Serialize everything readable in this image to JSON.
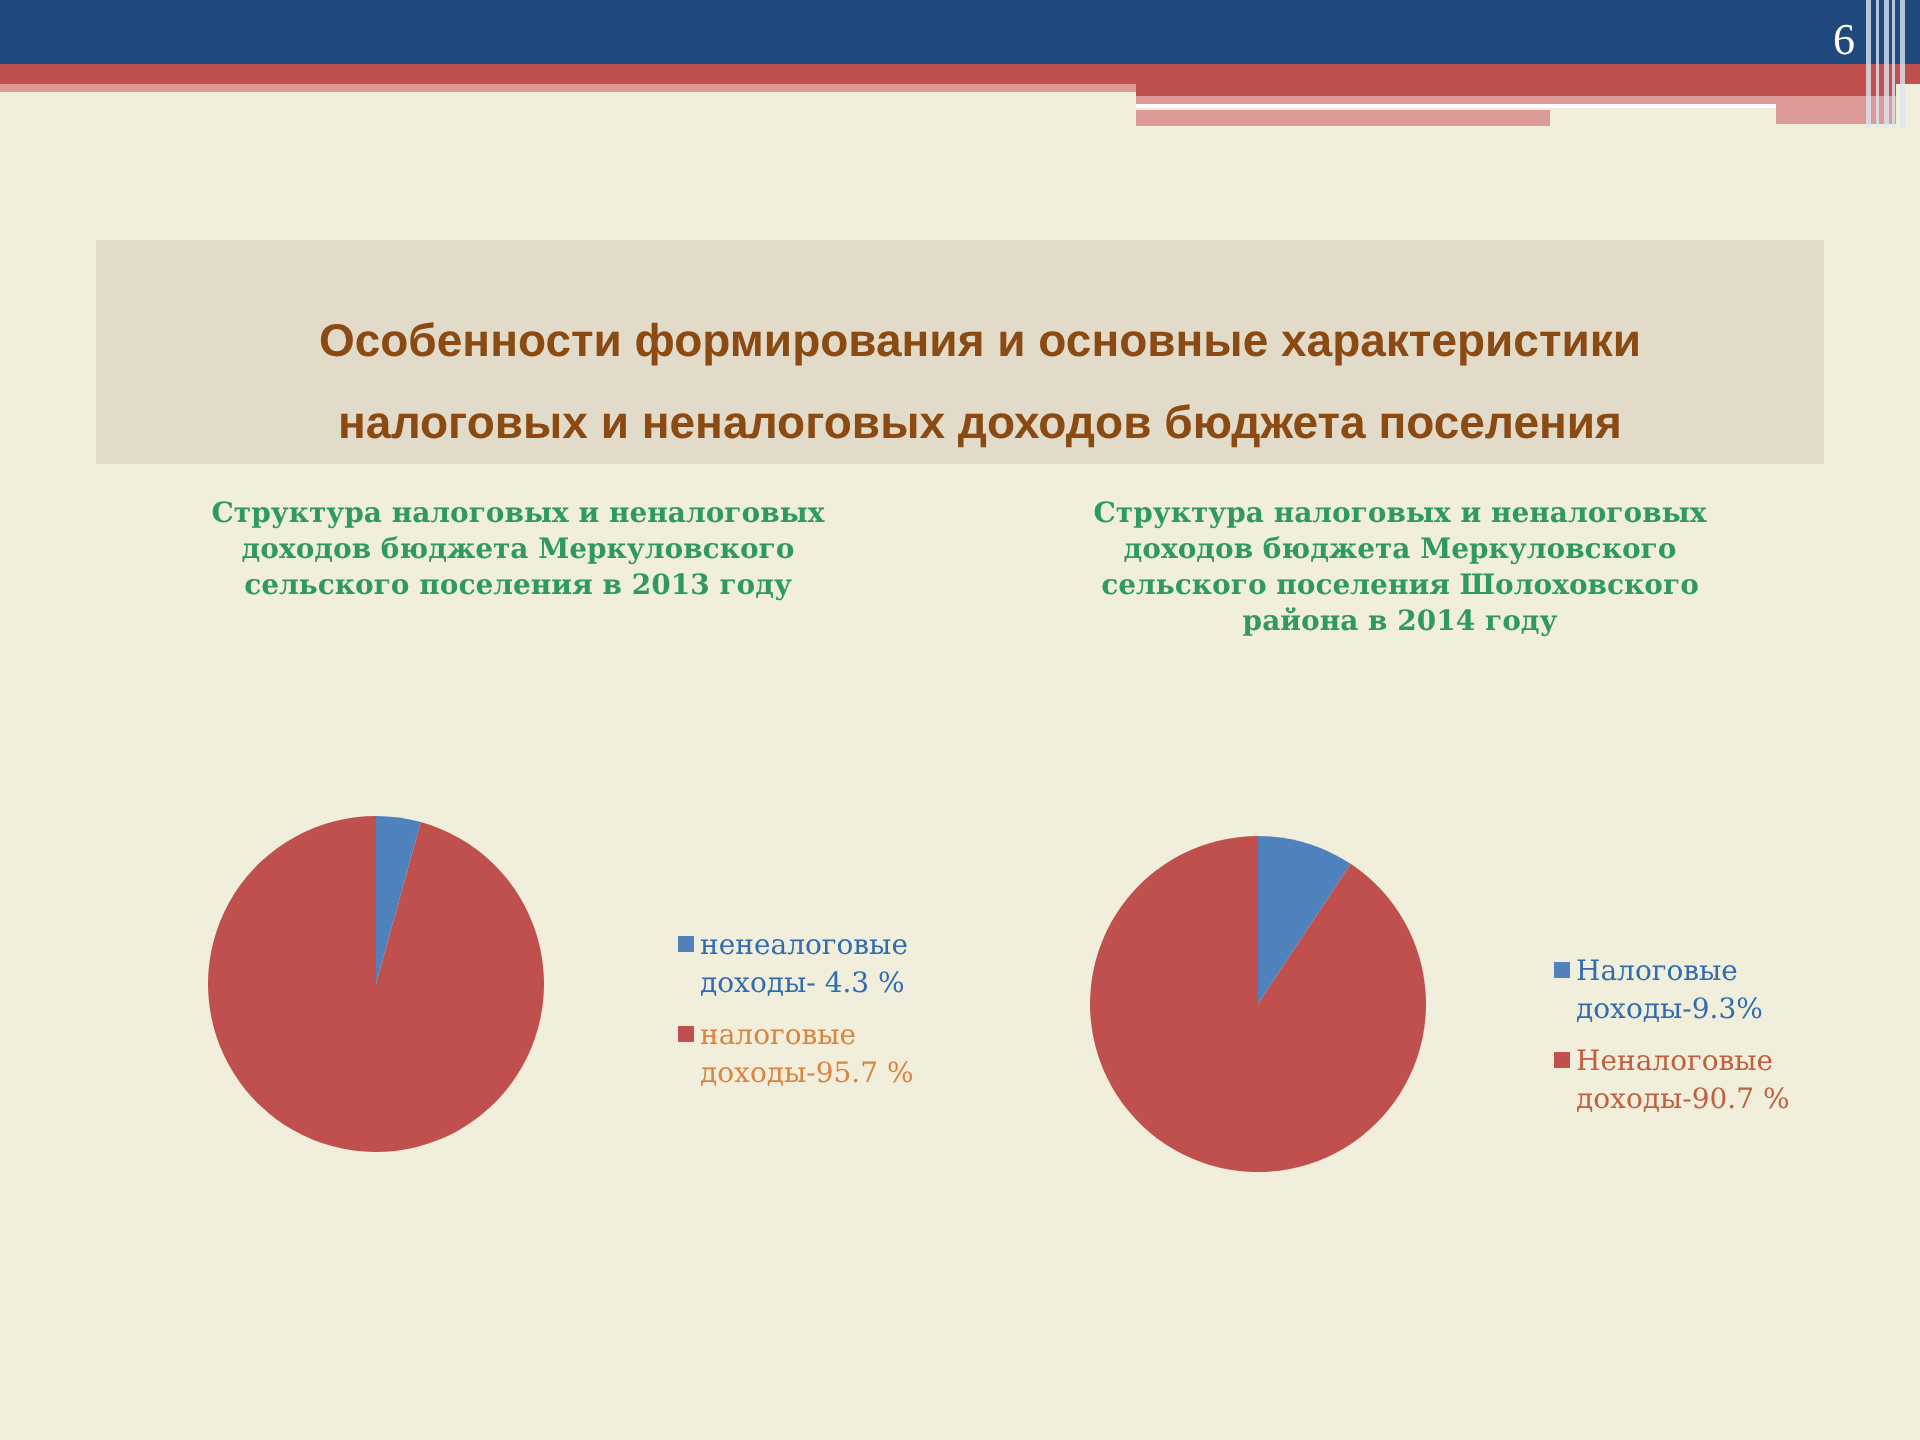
{
  "chart_data": [
    {
      "type": "pie",
      "title": "Структура налоговых и неналоговых доходов бюджета Меркуловского сельского поселения в 2013 году",
      "categories": [
        "ненеалоговые доходы- 4.3 %",
        "налоговые доходы-95.7 %"
      ],
      "values": [
        4.3,
        95.7
      ],
      "colors": [
        "#4f81bd",
        "#c0504d"
      ],
      "legend": "right",
      "annotations": [
        "Особенности формирования и основные характеристики налоговых и неналоговых доходов бюджета поселения",
        "6"
      ]
    },
    {
      "type": "pie",
      "title": "Структура налоговых и неналоговых доходов бюджета Меркуловского сельского поселения Шолоховского района в 2014 году",
      "categories": [
        "Налоговые доходы-9.3%",
        "Неналоговые доходы-90.7 %"
      ],
      "values": [
        9.3,
        90.7
      ],
      "colors": [
        "#4f81bd",
        "#c0504d"
      ],
      "legend": "right"
    }
  ]
}
